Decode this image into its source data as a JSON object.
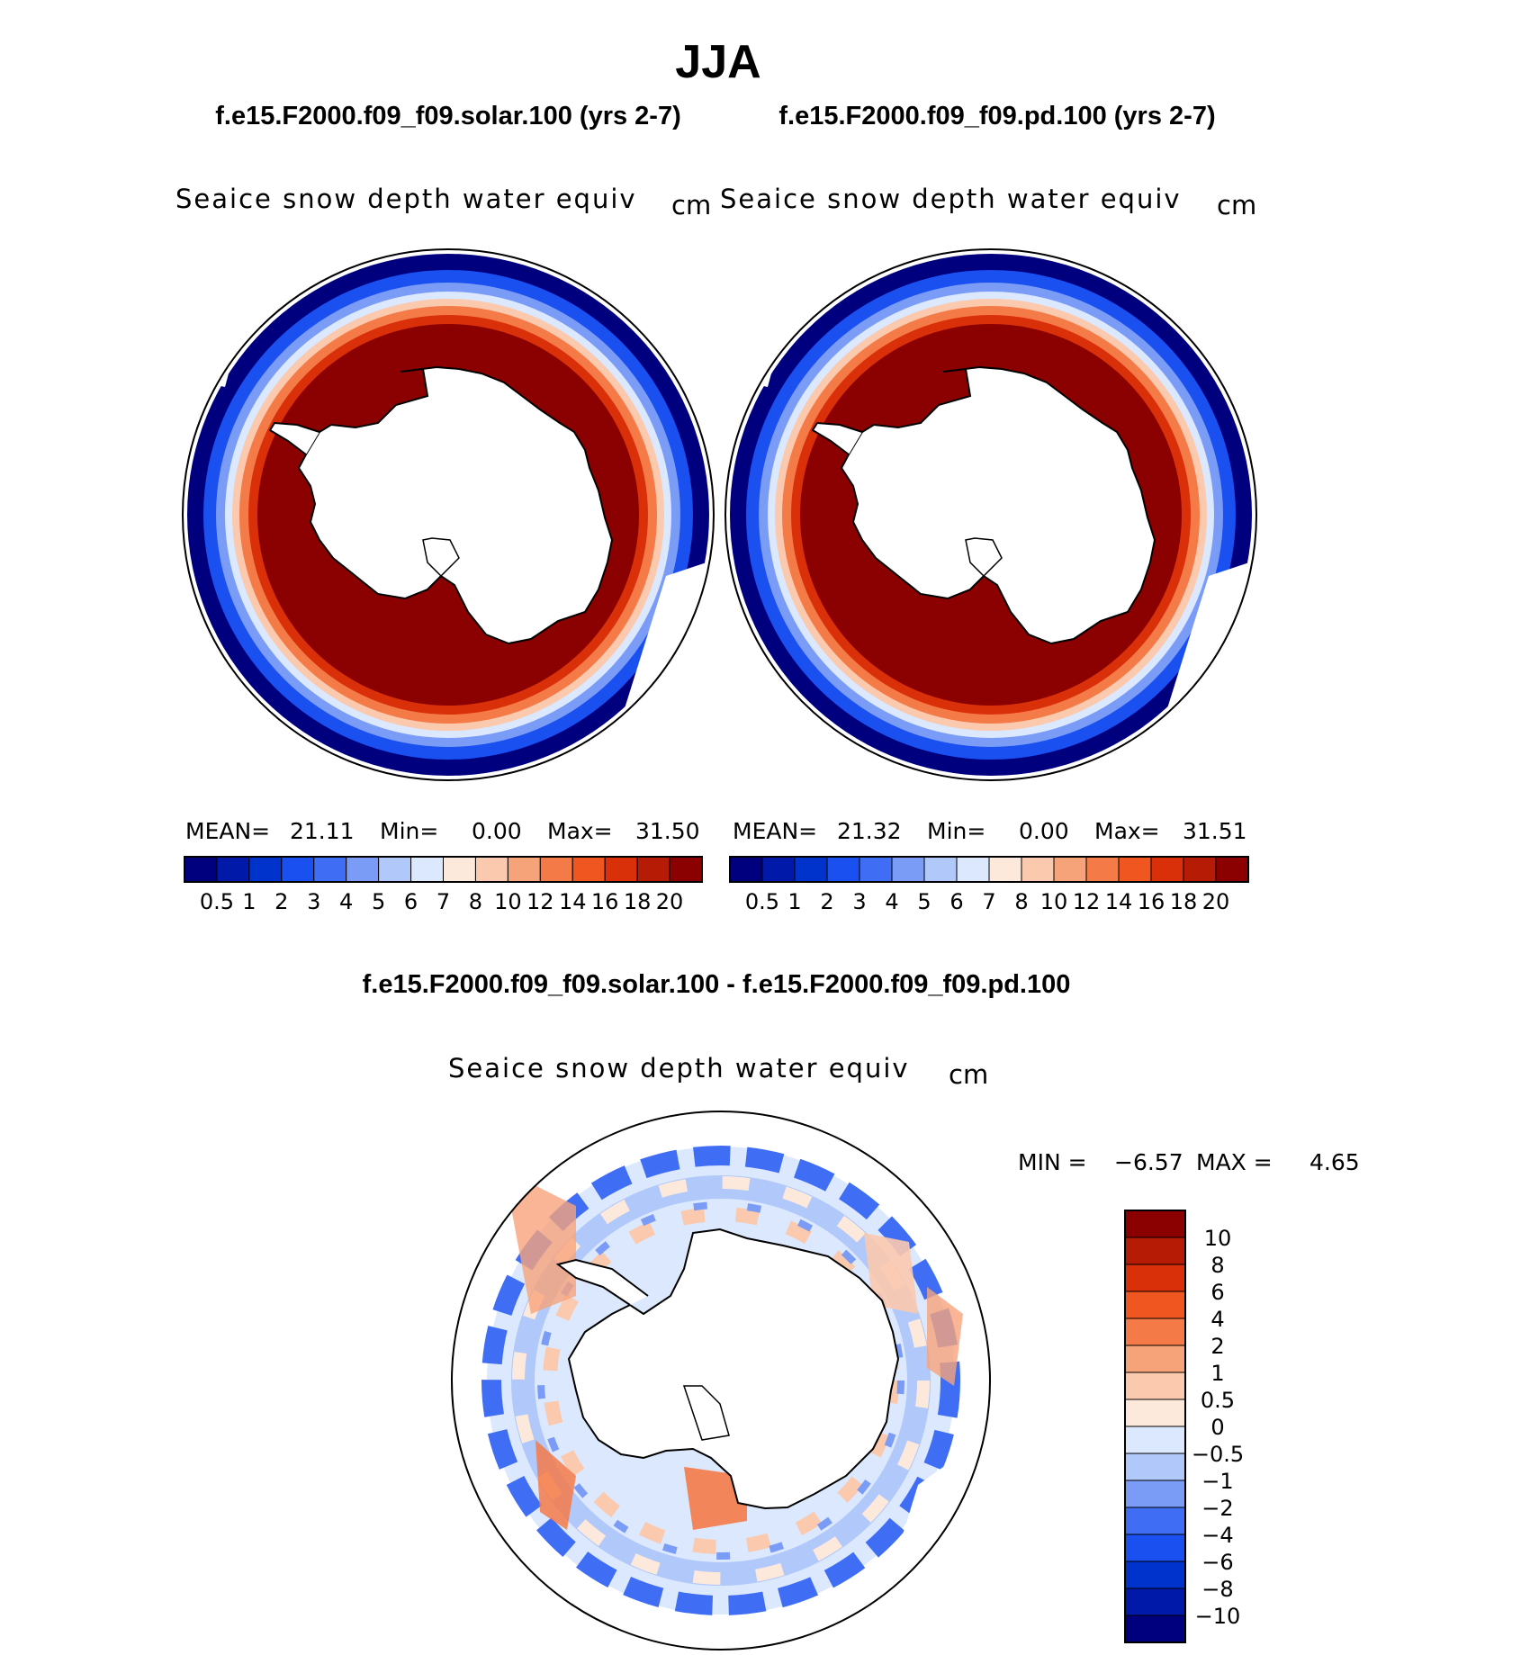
{
  "title": "JJA",
  "top_panels": [
    {
      "case": "f.e15.F2000.f09_f09.solar.100 (yrs 2-7)",
      "variable": "Seaice snow depth water equiv",
      "units": "cm",
      "stats": {
        "mean_label": "MEAN=",
        "mean": "21.11",
        "min_label": "Min=",
        "min": "0.00",
        "max_label": "Max=",
        "max": "31.50"
      }
    },
    {
      "case": "f.e15.F2000.f09_f09.pd.100 (yrs 2-7)",
      "variable": "Seaice snow depth water equiv",
      "units": "cm",
      "stats": {
        "mean_label": "MEAN=",
        "mean": "21.32",
        "min_label": "Min=",
        "min": "0.00",
        "max_label": "Max=",
        "max": "31.51"
      }
    }
  ],
  "top_colorbar": {
    "colors": [
      "#00007f",
      "#0019a8",
      "#0033cc",
      "#1a4ff0",
      "#3f6ef5",
      "#7a9cf7",
      "#b0c8fa",
      "#dbe8fd",
      "#fde8dc",
      "#fbc9ae",
      "#f7a37a",
      "#f47a48",
      "#f0561f",
      "#d9300a",
      "#b51b05",
      "#8b0000"
    ],
    "labels": [
      "0.5",
      "1",
      "2",
      "3",
      "4",
      "5",
      "6",
      "7",
      "8",
      "10",
      "12",
      "14",
      "16",
      "18",
      "20"
    ]
  },
  "diff_panel": {
    "title": "f.e15.F2000.f09_f09.solar.100 - f.e15.F2000.f09_f09.pd.100",
    "variable": "Seaice snow depth water equiv",
    "units": "cm",
    "stats": {
      "min_label": "MIN =",
      "min": "−6.57",
      "max_label": "MAX =",
      "max": "4.65"
    }
  },
  "diff_colorbar": {
    "colors": [
      "#8b0000",
      "#b51b05",
      "#d9300a",
      "#f0561f",
      "#f47a48",
      "#f7a37a",
      "#fbc9ae",
      "#fde8dc",
      "#dbe8fd",
      "#b0c8fa",
      "#7a9cf7",
      "#3f6ef5",
      "#1a4ff0",
      "#0033cc",
      "#0019a8",
      "#00007f"
    ],
    "labels": [
      "10",
      "8",
      "6",
      "4",
      "2",
      "1",
      "0.5",
      "0",
      "−0.5",
      "−1",
      "−2",
      "−4",
      "−6",
      "−8",
      "−10"
    ]
  },
  "colors": {
    "land": "#ffffff",
    "coast": "#000000",
    "thick_snow": "#8b0000",
    "neutral": "#dbe8fd"
  }
}
